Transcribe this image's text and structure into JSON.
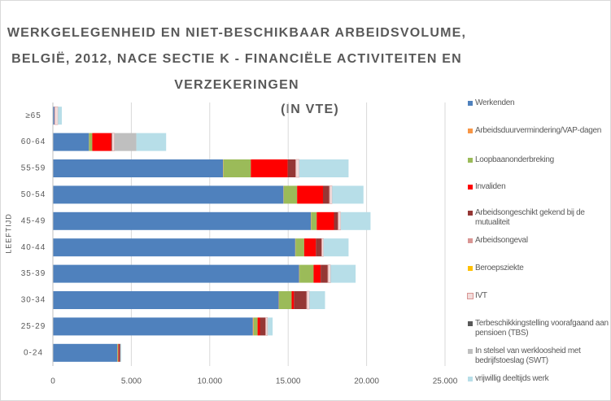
{
  "chart_data": {
    "type": "stacked-barh",
    "title": [
      "WERKGELEGENHEID EN NIET-BESCHIKBAAR ARBEIDSVOLUME,",
      "BELGIË, 2012, NACE SECTIE K - FINANCIËLE ACTIVITEITEN EN",
      "VERZEKERINGEN",
      "(IN VTE)"
    ],
    "ylabel": "LEEFTIJD",
    "categories": [
      "0-24",
      "25-29",
      "30-34",
      "35-39",
      "40-44",
      "45-49",
      "50-54",
      "55-59",
      "60-64",
      "≥65"
    ],
    "series": [
      {
        "name": "Werkenden",
        "color": "#4f81bd",
        "values": [
          4100,
          12750,
          14400,
          15700,
          15450,
          16450,
          14700,
          10850,
          2300,
          100
        ]
      },
      {
        "name": "Arbeidsduurvermindering/VAP-dagen",
        "color": "#f79646",
        "values": [
          10,
          50,
          20,
          20,
          20,
          20,
          20,
          20,
          10,
          0
        ]
      },
      {
        "name": "Loopbaanonderbreking",
        "color": "#9bbb59",
        "values": [
          50,
          250,
          800,
          900,
          550,
          350,
          850,
          1750,
          200,
          0
        ]
      },
      {
        "name": "Invaliden",
        "color": "#ff0000",
        "values": [
          30,
          150,
          150,
          450,
          750,
          1100,
          1650,
          2350,
          1200,
          20
        ]
      },
      {
        "name": "Arbeidsongeschikt gekend bij de mutualiteit",
        "color": "#953735",
        "values": [
          100,
          350,
          800,
          450,
          350,
          250,
          400,
          500,
          50,
          0
        ]
      },
      {
        "name": "Arbeidsongeval",
        "color": "#d99694",
        "values": [
          10,
          30,
          30,
          30,
          30,
          30,
          30,
          30,
          10,
          0
        ]
      },
      {
        "name": "Beroepsziekte",
        "color": "#ffc000",
        "values": [
          0,
          0,
          0,
          0,
          0,
          0,
          0,
          0,
          0,
          0
        ]
      },
      {
        "name": "IVT",
        "color": "#f2dcdb",
        "values": [
          0,
          100,
          150,
          150,
          100,
          150,
          150,
          200,
          150,
          200
        ]
      },
      {
        "name": "Terbeschikkingstelling voorafgaand aan pensioen (TBS)",
        "color": "#595959",
        "values": [
          0,
          0,
          0,
          0,
          0,
          0,
          0,
          0,
          0,
          0
        ]
      },
      {
        "name": "In stelsel van werkloosheid met bedrijfstoeslag (SWT)",
        "color": "#bfbfbf",
        "values": [
          0,
          30,
          0,
          0,
          0,
          0,
          0,
          0,
          1400,
          0
        ]
      },
      {
        "name": "vrijwillig deeltijds werk",
        "color": "#b7dee8",
        "values": [
          60,
          300,
          1000,
          1600,
          1600,
          1900,
          2000,
          3150,
          1900,
          250
        ]
      }
    ],
    "xlim": [
      0,
      25000
    ],
    "xticks": [
      0,
      {
        "value": 5000,
        "label": "5.000"
      },
      {
        "value": 10000,
        "label": "10.000"
      },
      {
        "value": 15000,
        "label": "15.000"
      },
      {
        "value": 20000,
        "label": "20.000"
      },
      {
        "value": 25000,
        "label": "25.000"
      }
    ],
    "grid": true,
    "legend": "right"
  }
}
